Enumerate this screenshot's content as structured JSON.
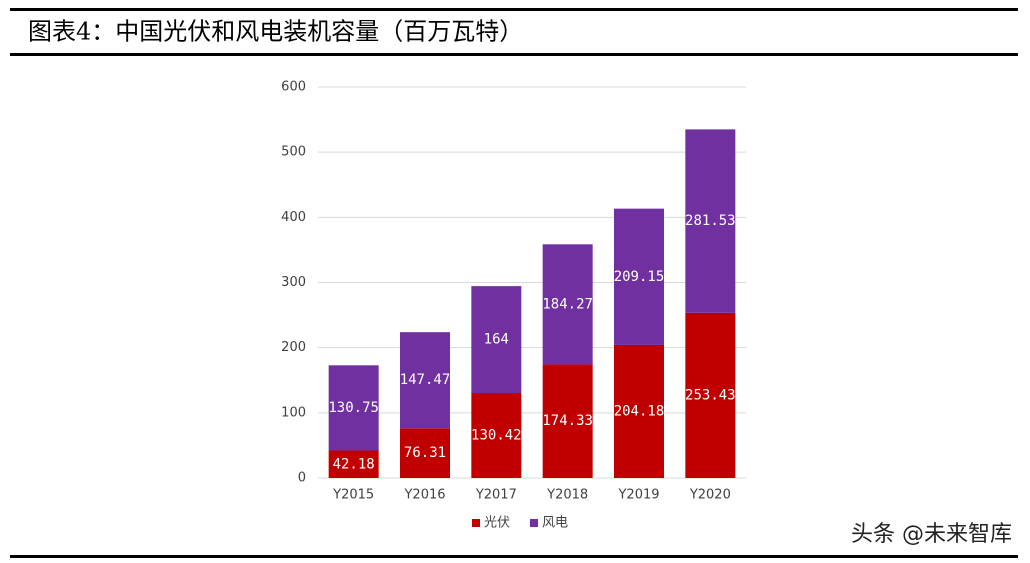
{
  "chart_data": {
    "type": "bar",
    "stacked": true,
    "title": "图表4：中国光伏和风电装机容量（百万瓦特）",
    "categories": [
      "Y2015",
      "Y2016",
      "Y2017",
      "Y2018",
      "Y2019",
      "Y2020"
    ],
    "series": [
      {
        "name": "光伏",
        "color": "#c00000",
        "values": [
          42.18,
          76.31,
          130.42,
          174.33,
          204.18,
          253.43
        ]
      },
      {
        "name": "风电",
        "color": "#7030a0",
        "values": [
          130.75,
          147.47,
          164,
          184.27,
          209.15,
          281.53
        ]
      }
    ],
    "ylim": [
      0,
      600
    ],
    "yticks": [
      0,
      100,
      200,
      300,
      400,
      500,
      600
    ],
    "grid": true,
    "legend": "bottom",
    "watermark": "头条 @未来智库"
  }
}
